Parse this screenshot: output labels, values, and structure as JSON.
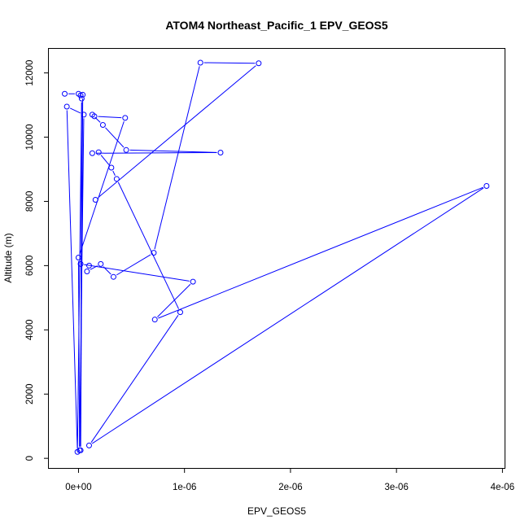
{
  "chart_data": {
    "type": "scatter",
    "title": "ATOM4 Northeast_Pacific_1 EPV_GEOS5",
    "xlabel": "EPV_GEOS5",
    "ylabel": "Altitude (m)",
    "xlim": [
      -2.8e-07,
      4.02e-06
    ],
    "ylim": [
      -300,
      12750
    ],
    "x_ticks": [
      0,
      1e-06,
      2e-06,
      3e-06,
      4e-06
    ],
    "x_tick_labels": [
      "0e+00",
      "1e-06",
      "2e-06",
      "3e-06",
      "4e-06"
    ],
    "y_ticks": [
      0,
      2000,
      4000,
      6000,
      8000,
      10000,
      12000
    ],
    "y_tick_labels": [
      "0",
      "2000",
      "4000",
      "6000",
      "8000",
      "10000",
      "12000"
    ],
    "grid": false,
    "line_color": "#0000ff",
    "marker": "open-circle",
    "points": [
      {
        "x": -1.3e-07,
        "y": 11350
      },
      {
        "x": 0.0,
        "y": 11350
      },
      {
        "x": 2e-08,
        "y": 11300
      },
      {
        "x": 4e-08,
        "y": 11320
      },
      {
        "x": 2e-08,
        "y": 250
      },
      {
        "x": 3e-08,
        "y": 11200
      },
      {
        "x": -1e-08,
        "y": 200
      },
      {
        "x": -1.1e-07,
        "y": 10950
      },
      {
        "x": 5e-08,
        "y": 10700
      },
      {
        "x": 1e-08,
        "y": 250
      },
      {
        "x": 0.0,
        "y": 6250
      },
      {
        "x": 4.4e-07,
        "y": 10600
      },
      {
        "x": 1.5e-07,
        "y": 10650
      },
      {
        "x": 1.3e-07,
        "y": 10700
      },
      {
        "x": 2.3e-07,
        "y": 10380
      },
      {
        "x": 4.5e-07,
        "y": 9600
      },
      {
        "x": 1.34e-06,
        "y": 9520
      },
      {
        "x": 1.3e-07,
        "y": 9500
      },
      {
        "x": 1.9e-07,
        "y": 9530
      },
      {
        "x": 3.1e-07,
        "y": 9050
      },
      {
        "x": 3.6e-07,
        "y": 8700
      },
      {
        "x": 9.6e-07,
        "y": 4550
      },
      {
        "x": 1e-07,
        "y": 400
      },
      {
        "x": 3.85e-06,
        "y": 8480
      },
      {
        "x": 7.2e-07,
        "y": 4320
      },
      {
        "x": 1.08e-06,
        "y": 5500
      },
      {
        "x": 2e-08,
        "y": 6050
      },
      {
        "x": 1e-07,
        "y": 6000
      },
      {
        "x": 8e-08,
        "y": 5820
      },
      {
        "x": 2.1e-07,
        "y": 6050
      },
      {
        "x": 3.3e-07,
        "y": 5650
      },
      {
        "x": 7.1e-07,
        "y": 6400
      },
      {
        "x": 1.15e-06,
        "y": 12320
      },
      {
        "x": 1.7e-06,
        "y": 12300
      },
      {
        "x": 1.6e-07,
        "y": 8050
      }
    ]
  }
}
